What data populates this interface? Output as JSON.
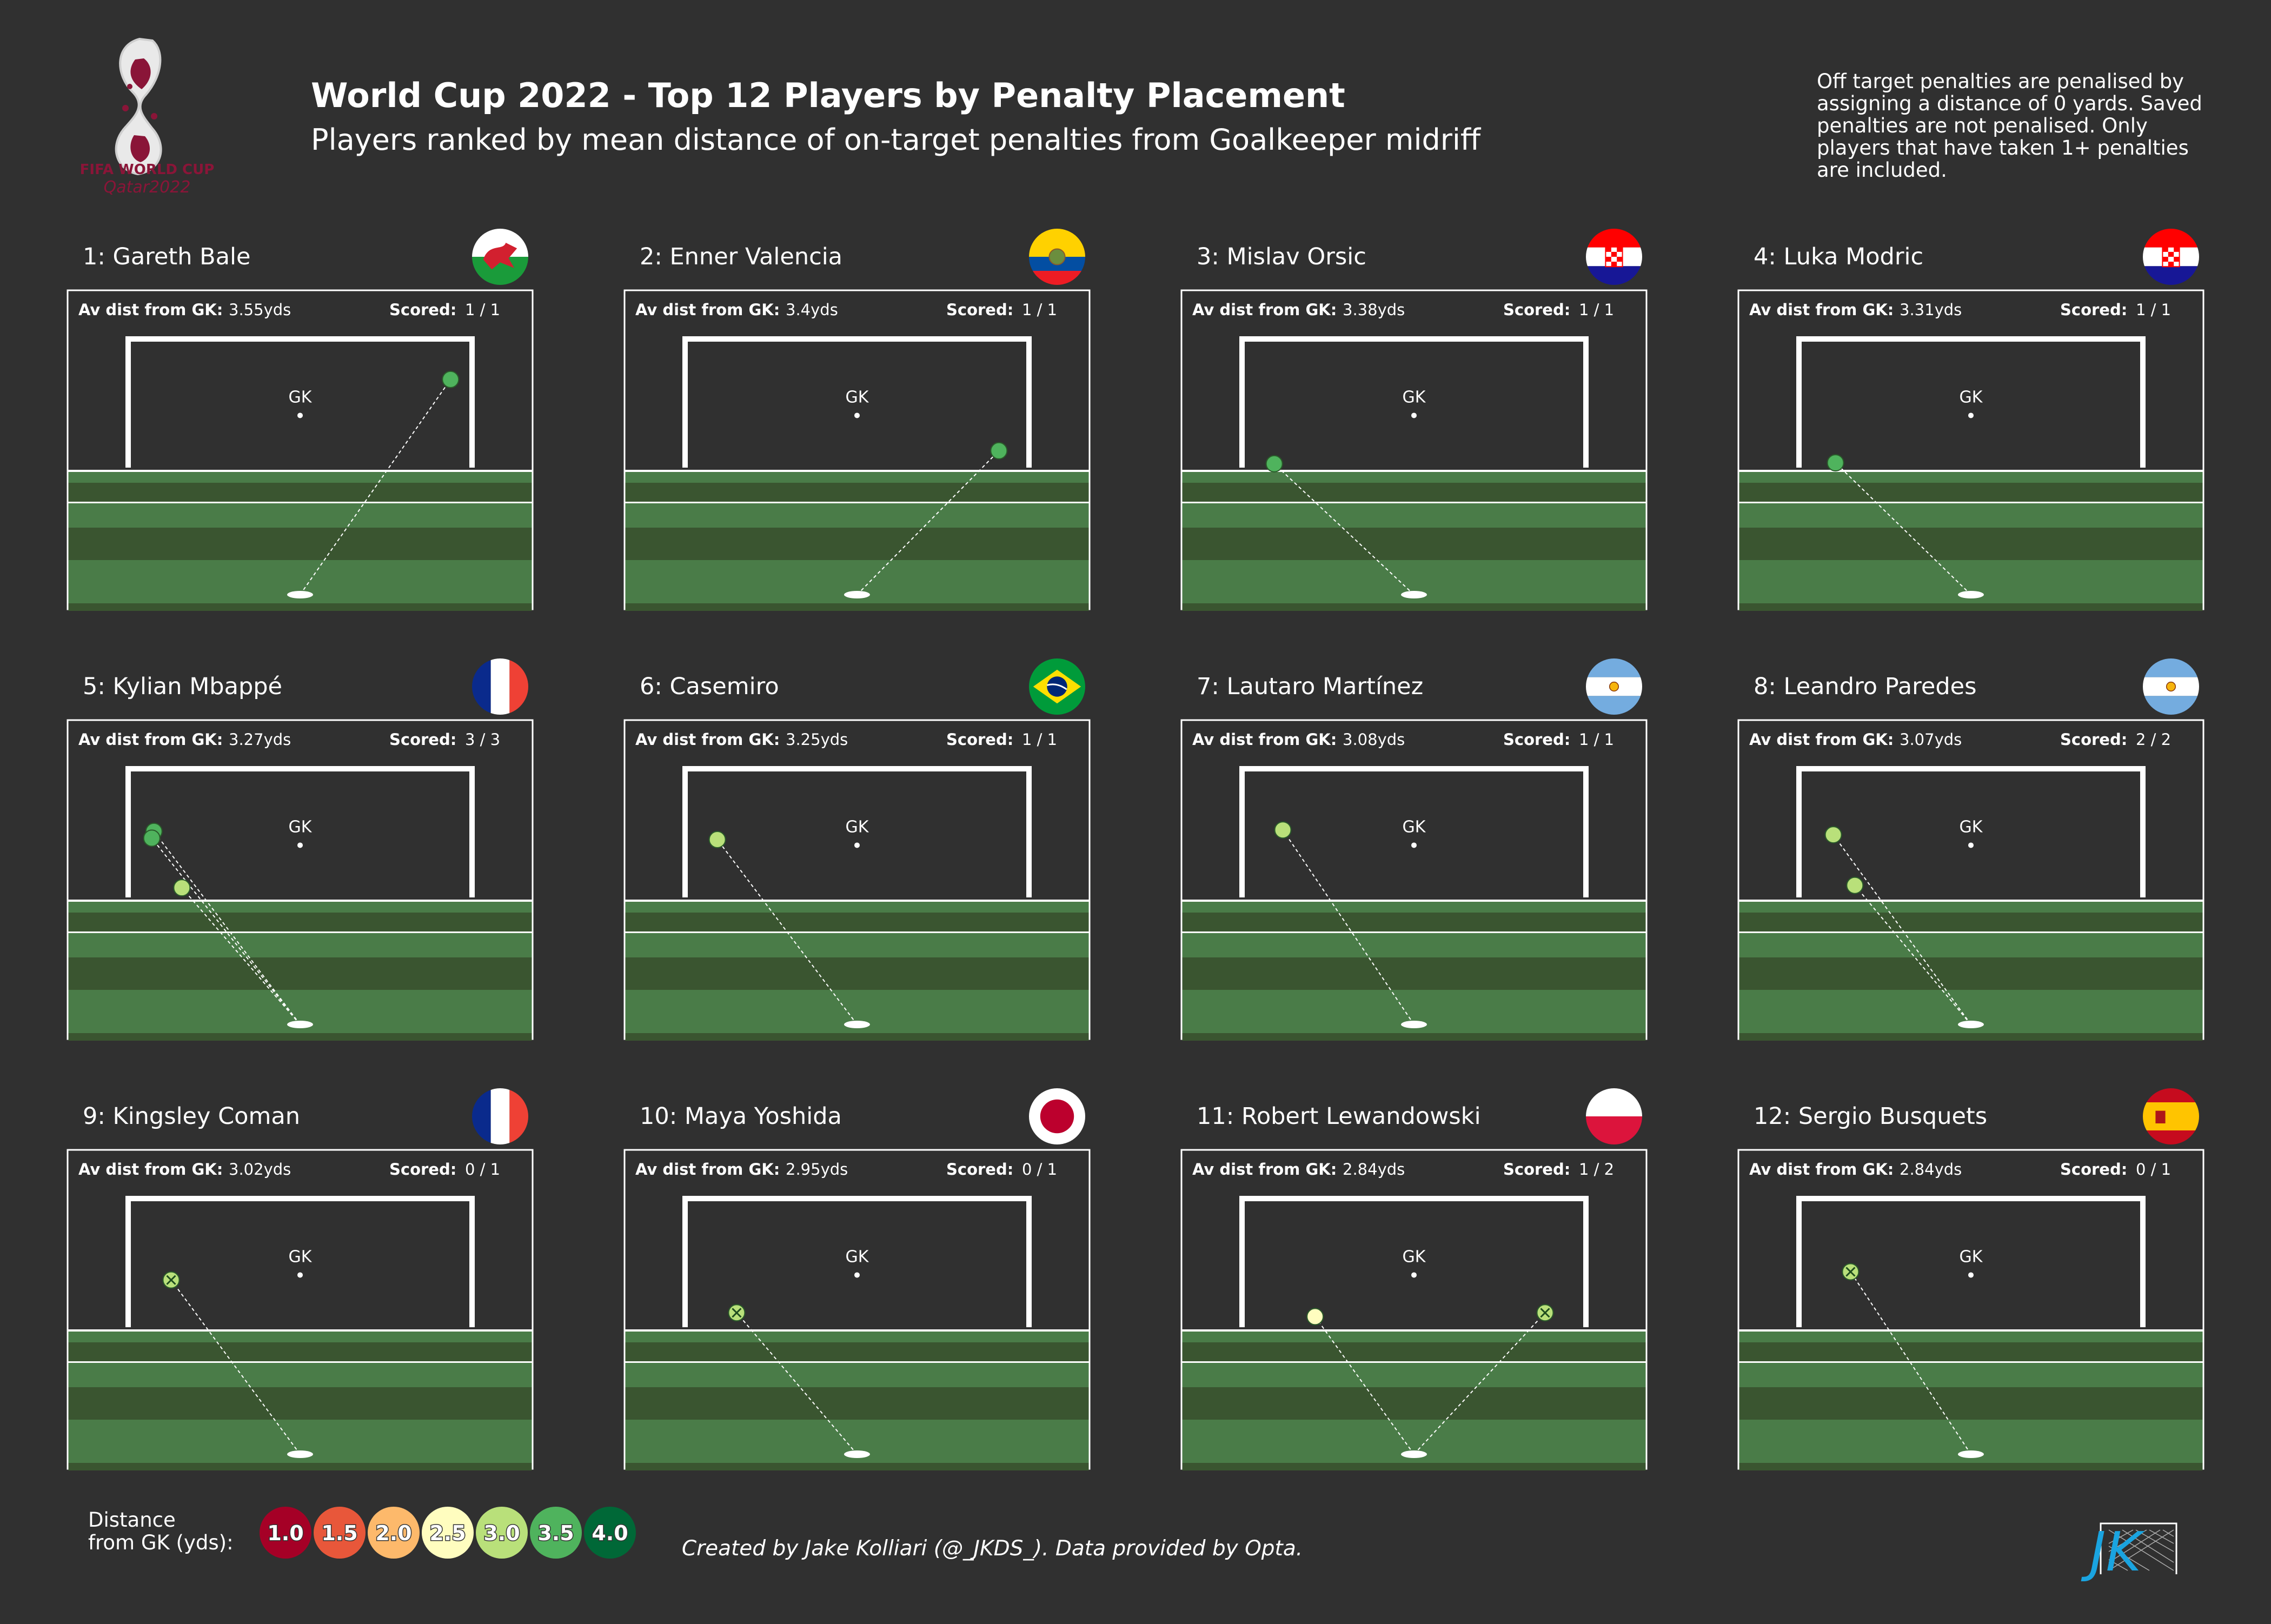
{
  "header": {
    "title": "World Cup 2022 - Top 12 Players by Penalty Placement",
    "subtitle": "Players ranked by mean distance of on-target penalties from Goalkeeper midriff",
    "note_lines": [
      "Off target penalties are penalised by",
      "assigning a distance of 0 yards. Saved",
      "penalties are not penalised. Only",
      "players that have taken 1+ penalties",
      "are included."
    ],
    "logo_text": [
      "FIFA WORLD CUP",
      "Qatar2022"
    ]
  },
  "labels": {
    "av_dist": "Av dist from GK:",
    "scored": "Scored:",
    "gk": "GK"
  },
  "legend": {
    "title_lines": [
      "Distance",
      "from GK (yds):"
    ],
    "items": [
      {
        "label": "1.0",
        "color": "#a50026"
      },
      {
        "label": "1.5",
        "color": "#e8573a"
      },
      {
        "label": "2.0",
        "color": "#fdb96b"
      },
      {
        "label": "2.5",
        "color": "#fffdbf"
      },
      {
        "label": "3.0",
        "color": "#b9e07a"
      },
      {
        "label": "3.5",
        "color": "#4fb35d"
      },
      {
        "label": "4.0",
        "color": "#006837"
      }
    ]
  },
  "footer": {
    "credit": "Created by Jake Kolliari (@_JKDS_). Data provided by Opta.",
    "brand": "JK"
  },
  "colors": {
    "background": "#303030",
    "pitch_light": "#4a7c48",
    "pitch_dark": "#3a5530",
    "frame": "#ffffff"
  },
  "chart_data": {
    "type": "scatter",
    "title": "World Cup 2022 - Top 12 Players by Penalty Placement",
    "x_range_yds": [
      -4,
      4
    ],
    "y_range_yds": [
      0,
      2.67
    ],
    "goal_width_yds": 8,
    "goal_height_yds": 2.67,
    "gk_position_yds": [
      0,
      1.33
    ],
    "players": [
      {
        "rank": 1,
        "name": "Gareth Bale",
        "country": "wales",
        "avg_dist": "3.55yds",
        "scored": "1 / 1",
        "shots": [
          {
            "x": 3.5,
            "y": 1.83,
            "dist": 3.55,
            "outcome": "goal"
          }
        ]
      },
      {
        "rank": 2,
        "name": "Enner Valencia",
        "country": "ecuador",
        "avg_dist": "3.4yds",
        "scored": "1 / 1",
        "shots": [
          {
            "x": 3.3,
            "y": 0.35,
            "dist": 3.4,
            "outcome": "goal"
          }
        ]
      },
      {
        "rank": 3,
        "name": "Mislav Orsic",
        "country": "croatia",
        "avg_dist": "3.38yds",
        "scored": "1 / 1",
        "shots": [
          {
            "x": -3.25,
            "y": 0.08,
            "dist": 3.38,
            "outcome": "goal"
          }
        ]
      },
      {
        "rank": 4,
        "name": "Luka Modric",
        "country": "croatia",
        "avg_dist": "3.31yds",
        "scored": "1 / 1",
        "shots": [
          {
            "x": -3.15,
            "y": 0.1,
            "dist": 3.31,
            "outcome": "goal"
          }
        ]
      },
      {
        "rank": 5,
        "name": "Kylian Mbappé",
        "country": "france",
        "avg_dist": "3.27yds",
        "scored": "3 / 3",
        "shots": [
          {
            "x": -3.4,
            "y": 1.37,
            "dist": 3.4,
            "outcome": "goal"
          },
          {
            "x": -3.45,
            "y": 1.23,
            "dist": 3.45,
            "outcome": "goal"
          },
          {
            "x": -2.75,
            "y": 0.2,
            "dist": 2.97,
            "outcome": "goal"
          }
        ]
      },
      {
        "rank": 6,
        "name": "Casemiro",
        "country": "brazil",
        "avg_dist": "3.25yds",
        "scored": "1 / 1",
        "shots": [
          {
            "x": -3.25,
            "y": 1.2,
            "dist": 3.25,
            "outcome": "goal"
          }
        ]
      },
      {
        "rank": 7,
        "name": "Lautaro Martínez",
        "country": "argentina",
        "avg_dist": "3.08yds",
        "scored": "1 / 1",
        "shots": [
          {
            "x": -3.05,
            "y": 1.4,
            "dist": 3.08,
            "outcome": "goal"
          }
        ]
      },
      {
        "rank": 8,
        "name": "Leandro Paredes",
        "country": "argentina",
        "avg_dist": "3.07yds",
        "scored": "2 / 2",
        "shots": [
          {
            "x": -3.2,
            "y": 1.3,
            "dist": 3.2,
            "outcome": "goal"
          },
          {
            "x": -2.7,
            "y": 0.25,
            "dist": 2.94,
            "outcome": "goal"
          }
        ]
      },
      {
        "rank": 9,
        "name": "Kingsley Coman",
        "country": "france",
        "avg_dist": "3.02yds",
        "scored": "0 / 1",
        "shots": [
          {
            "x": -3.0,
            "y": 0.98,
            "dist": 3.02,
            "outcome": "saved"
          }
        ]
      },
      {
        "rank": 10,
        "name": "Maya Yoshida",
        "country": "japan",
        "avg_dist": "2.95yds",
        "scored": "0 / 1",
        "shots": [
          {
            "x": -2.8,
            "y": 0.3,
            "dist": 2.95,
            "outcome": "saved"
          }
        ]
      },
      {
        "rank": 11,
        "name": "Robert Lewandowski",
        "country": "poland",
        "avg_dist": "2.84yds",
        "scored": "1 / 2",
        "shots": [
          {
            "x": -2.3,
            "y": 0.22,
            "dist": 2.6,
            "outcome": "goal"
          },
          {
            "x": 3.05,
            "y": 0.3,
            "dist": 3.07,
            "outcome": "saved"
          }
        ]
      },
      {
        "rank": 12,
        "name": "Sergio Busquets",
        "country": "spain",
        "avg_dist": "2.84yds",
        "scored": "0 / 1",
        "shots": [
          {
            "x": -2.8,
            "y": 1.15,
            "dist": 2.84,
            "outcome": "saved"
          }
        ]
      }
    ]
  }
}
